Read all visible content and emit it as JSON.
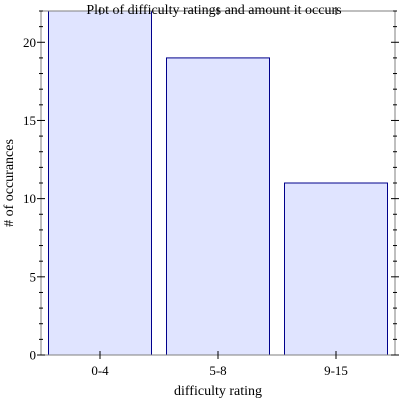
{
  "chart_data": {
    "type": "bar",
    "title": "Plot of difficulty ratings and amount it occurs",
    "xlabel": "difficulty rating",
    "ylabel": "# of occurances",
    "categories": [
      "0-4",
      "5-8",
      "9-15"
    ],
    "values": [
      22,
      19,
      11
    ],
    "ylim": [
      0,
      22
    ],
    "yticks": [
      0,
      5,
      10,
      15,
      20
    ],
    "grid": false,
    "bar_fill": "#e0e4ff",
    "bar_stroke": "#00008b"
  }
}
